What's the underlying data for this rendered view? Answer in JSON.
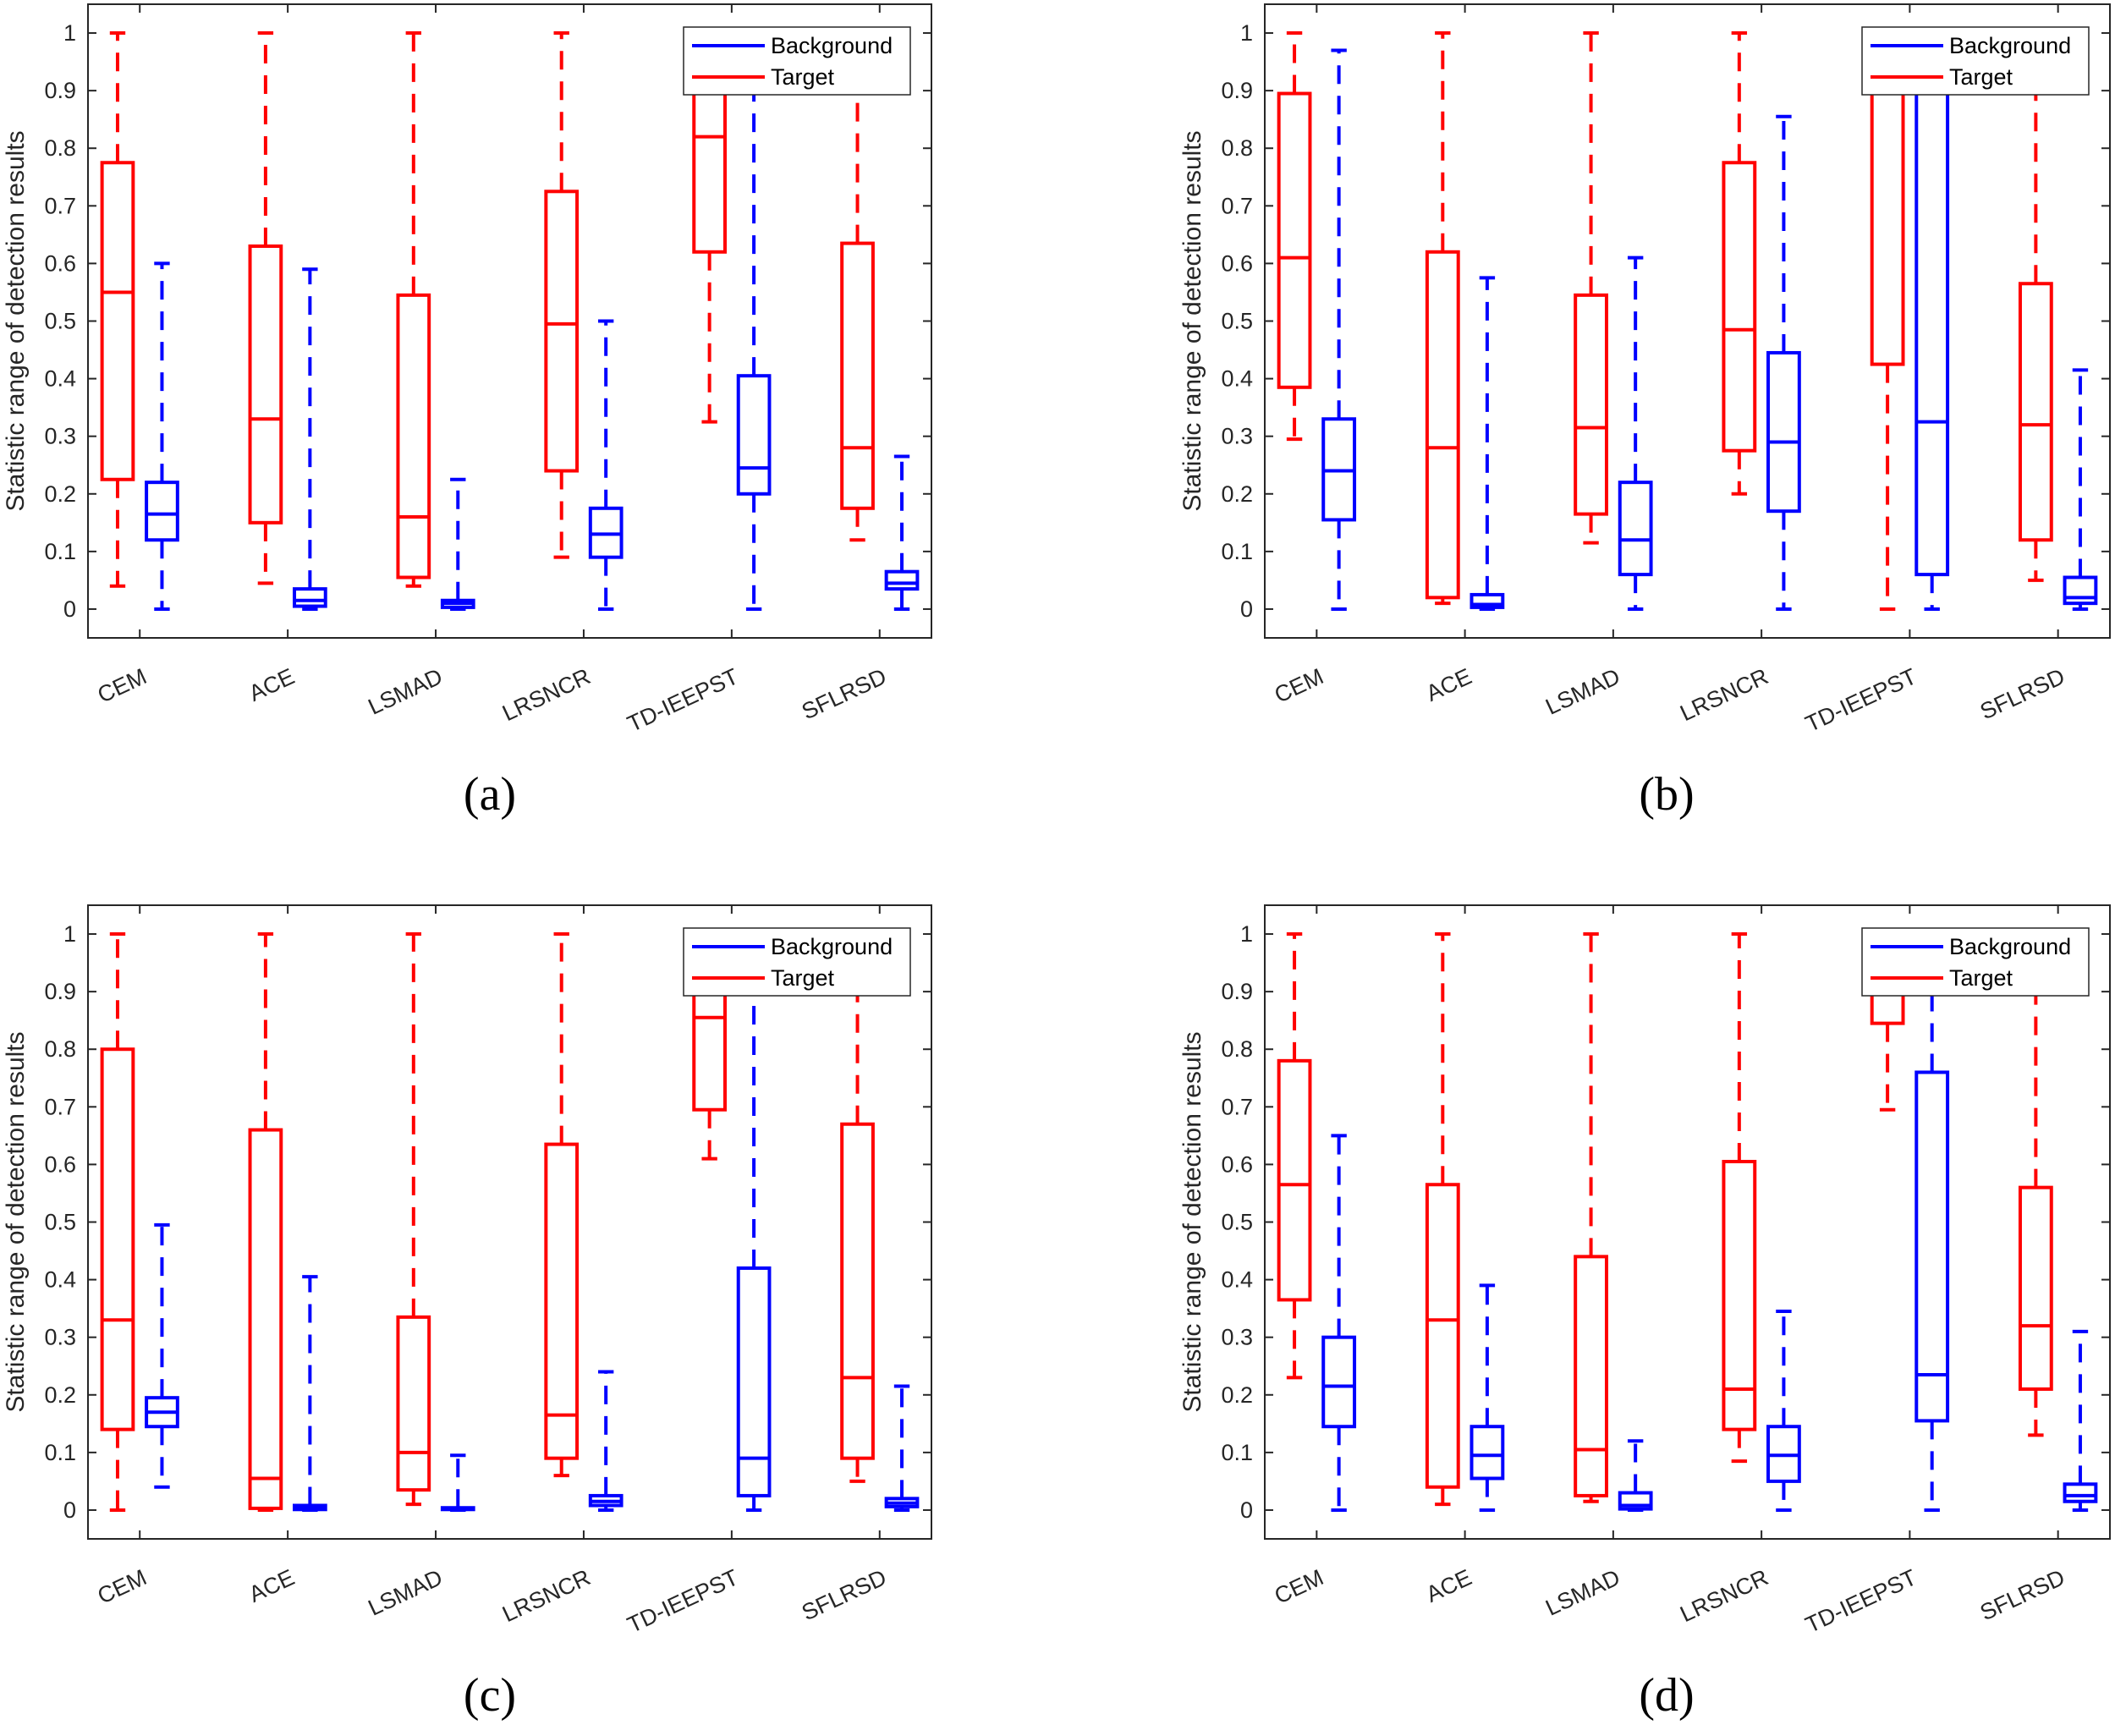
{
  "colors": {
    "target": "#ff0000",
    "background": "#0000ff",
    "axis": "#262626"
  },
  "chart_data": [
    {
      "type": "box",
      "panel_label": "(a)",
      "ylabel": "Statistic range of detection results",
      "ylim": [
        -0.05,
        1.05
      ],
      "yticks": [
        "0",
        "0.1",
        "0.2",
        "0.3",
        "0.4",
        "0.5",
        "0.6",
        "0.7",
        "0.8",
        "0.9",
        "1"
      ],
      "categories": [
        "CEM",
        "ACE",
        "LSMAD",
        "LRSNCR",
        "TD-IEEPST",
        "SFLRSD"
      ],
      "legend": {
        "position": "top-right",
        "entries": [
          "Background",
          "Target"
        ]
      },
      "series": [
        {
          "name": "Target",
          "stats_order": "whisker_low,q1,median,q3,whisker_high",
          "boxes": [
            [
              0.04,
              0.225,
              0.55,
              0.775,
              1.0
            ],
            [
              0.045,
              0.15,
              0.33,
              0.63,
              1.0
            ],
            [
              0.04,
              0.055,
              0.16,
              0.545,
              1.0
            ],
            [
              0.09,
              0.24,
              0.495,
              0.725,
              1.0
            ],
            [
              0.325,
              0.62,
              0.82,
              0.95,
              1.0
            ],
            [
              0.12,
              0.175,
              0.28,
              0.635,
              1.0
            ]
          ]
        },
        {
          "name": "Background",
          "stats_order": "whisker_low,q1,median,q3,whisker_high",
          "boxes": [
            [
              0,
              0.12,
              0.165,
              0.22,
              0.6
            ],
            [
              0,
              0.005,
              0.015,
              0.035,
              0.59
            ],
            [
              0,
              0.003,
              0.01,
              0.015,
              0.225
            ],
            [
              0,
              0.09,
              0.13,
              0.175,
              0.5
            ],
            [
              0,
              0.2,
              0.245,
              0.405,
              1.0
            ],
            [
              0,
              0.035,
              0.045,
              0.065,
              0.265
            ]
          ]
        }
      ]
    },
    {
      "type": "box",
      "panel_label": "(b)",
      "ylabel": "Statistic range of detection results",
      "ylim": [
        -0.05,
        1.05
      ],
      "yticks": [
        "0",
        "0.1",
        "0.2",
        "0.3",
        "0.4",
        "0.5",
        "0.6",
        "0.7",
        "0.8",
        "0.9",
        "1"
      ],
      "categories": [
        "CEM",
        "ACE",
        "LSMAD",
        "LRSNCR",
        "TD-IEEPST",
        "SFLRSD"
      ],
      "legend": {
        "position": "top-right",
        "entries": [
          "Background",
          "Target"
        ]
      },
      "series": [
        {
          "name": "Target",
          "stats_order": "whisker_low,q1,median,q3,whisker_high",
          "boxes": [
            [
              0.295,
              0.385,
              0.61,
              0.895,
              1.0
            ],
            [
              0.01,
              0.02,
              0.28,
              0.62,
              1.0
            ],
            [
              0.115,
              0.165,
              0.315,
              0.545,
              1.0
            ],
            [
              0.2,
              0.275,
              0.485,
              0.775,
              1.0
            ],
            [
              0,
              0.425,
              0.97,
              1.0,
              1.0
            ],
            [
              0.05,
              0.12,
              0.32,
              0.565,
              1.0
            ]
          ]
        },
        {
          "name": "Background",
          "stats_order": "whisker_low,q1,median,q3,whisker_high",
          "boxes": [
            [
              0,
              0.155,
              0.24,
              0.33,
              0.97
            ],
            [
              0,
              0.003,
              0.008,
              0.025,
              0.575
            ],
            [
              0,
              0.06,
              0.12,
              0.22,
              0.61
            ],
            [
              0,
              0.17,
              0.29,
              0.445,
              0.855
            ],
            [
              0,
              0.06,
              0.325,
              0.95,
              1.0
            ],
            [
              0,
              0.01,
              0.02,
              0.055,
              0.415
            ]
          ]
        }
      ]
    },
    {
      "type": "box",
      "panel_label": "(c)",
      "ylabel": "Statistic range of detection results",
      "ylim": [
        -0.05,
        1.05
      ],
      "yticks": [
        "0",
        "0.1",
        "0.2",
        "0.3",
        "0.4",
        "0.5",
        "0.6",
        "0.7",
        "0.8",
        "0.9",
        "1"
      ],
      "categories": [
        "CEM",
        "ACE",
        "LSMAD",
        "LRSNCR",
        "TD-IEEPST",
        "SFLRSD"
      ],
      "legend": {
        "position": "top-right",
        "entries": [
          "Background",
          "Target"
        ]
      },
      "series": [
        {
          "name": "Target",
          "stats_order": "whisker_low,q1,median,q3,whisker_high",
          "boxes": [
            [
              0,
              0.14,
              0.33,
              0.8,
              1.0
            ],
            [
              0,
              0.003,
              0.055,
              0.66,
              1.0
            ],
            [
              0.01,
              0.035,
              0.1,
              0.335,
              1.0
            ],
            [
              0.06,
              0.09,
              0.165,
              0.635,
              1.0
            ],
            [
              0.61,
              0.695,
              0.855,
              0.95,
              1.0
            ],
            [
              0.05,
              0.09,
              0.23,
              0.67,
              1.0
            ]
          ]
        },
        {
          "name": "Background",
          "stats_order": "whisker_low,q1,median,q3,whisker_high",
          "boxes": [
            [
              0.04,
              0.145,
              0.17,
              0.195,
              0.495
            ],
            [
              0,
              0.001,
              0.003,
              0.008,
              0.405
            ],
            [
              0,
              0.001,
              0.002,
              0.004,
              0.095
            ],
            [
              0,
              0.008,
              0.015,
              0.025,
              0.24
            ],
            [
              0,
              0.025,
              0.09,
              0.42,
              1.0
            ],
            [
              0,
              0.006,
              0.012,
              0.02,
              0.215
            ]
          ]
        }
      ]
    },
    {
      "type": "box",
      "panel_label": "(d)",
      "ylabel": "Statistic range of detection results",
      "ylim": [
        -0.05,
        1.05
      ],
      "yticks": [
        "0",
        "0.1",
        "0.2",
        "0.3",
        "0.4",
        "0.5",
        "0.6",
        "0.7",
        "0.8",
        "0.9",
        "1"
      ],
      "categories": [
        "CEM",
        "ACE",
        "LSMAD",
        "LRSNCR",
        "TD-IEEPST",
        "SFLRSD"
      ],
      "legend": {
        "position": "top-right",
        "entries": [
          "Background",
          "Target"
        ]
      },
      "series": [
        {
          "name": "Target",
          "stats_order": "whisker_low,q1,median,q3,whisker_high",
          "boxes": [
            [
              0.23,
              0.365,
              0.565,
              0.78,
              1.0
            ],
            [
              0.01,
              0.04,
              0.33,
              0.565,
              1.0
            ],
            [
              0.015,
              0.025,
              0.105,
              0.44,
              1.0
            ],
            [
              0.085,
              0.14,
              0.21,
              0.605,
              1.0
            ],
            [
              0.695,
              0.845,
              0.95,
              1.0,
              1.0
            ],
            [
              0.13,
              0.21,
              0.32,
              0.56,
              1.0
            ]
          ]
        },
        {
          "name": "Background",
          "stats_order": "whisker_low,q1,median,q3,whisker_high",
          "boxes": [
            [
              0,
              0.145,
              0.215,
              0.3,
              0.65
            ],
            [
              0,
              0.055,
              0.095,
              0.145,
              0.39
            ],
            [
              0,
              0.002,
              0.008,
              0.03,
              0.12
            ],
            [
              0,
              0.05,
              0.095,
              0.145,
              0.345
            ],
            [
              0,
              0.155,
              0.235,
              0.76,
              1.0
            ],
            [
              0,
              0.015,
              0.025,
              0.045,
              0.31
            ]
          ]
        }
      ]
    }
  ]
}
